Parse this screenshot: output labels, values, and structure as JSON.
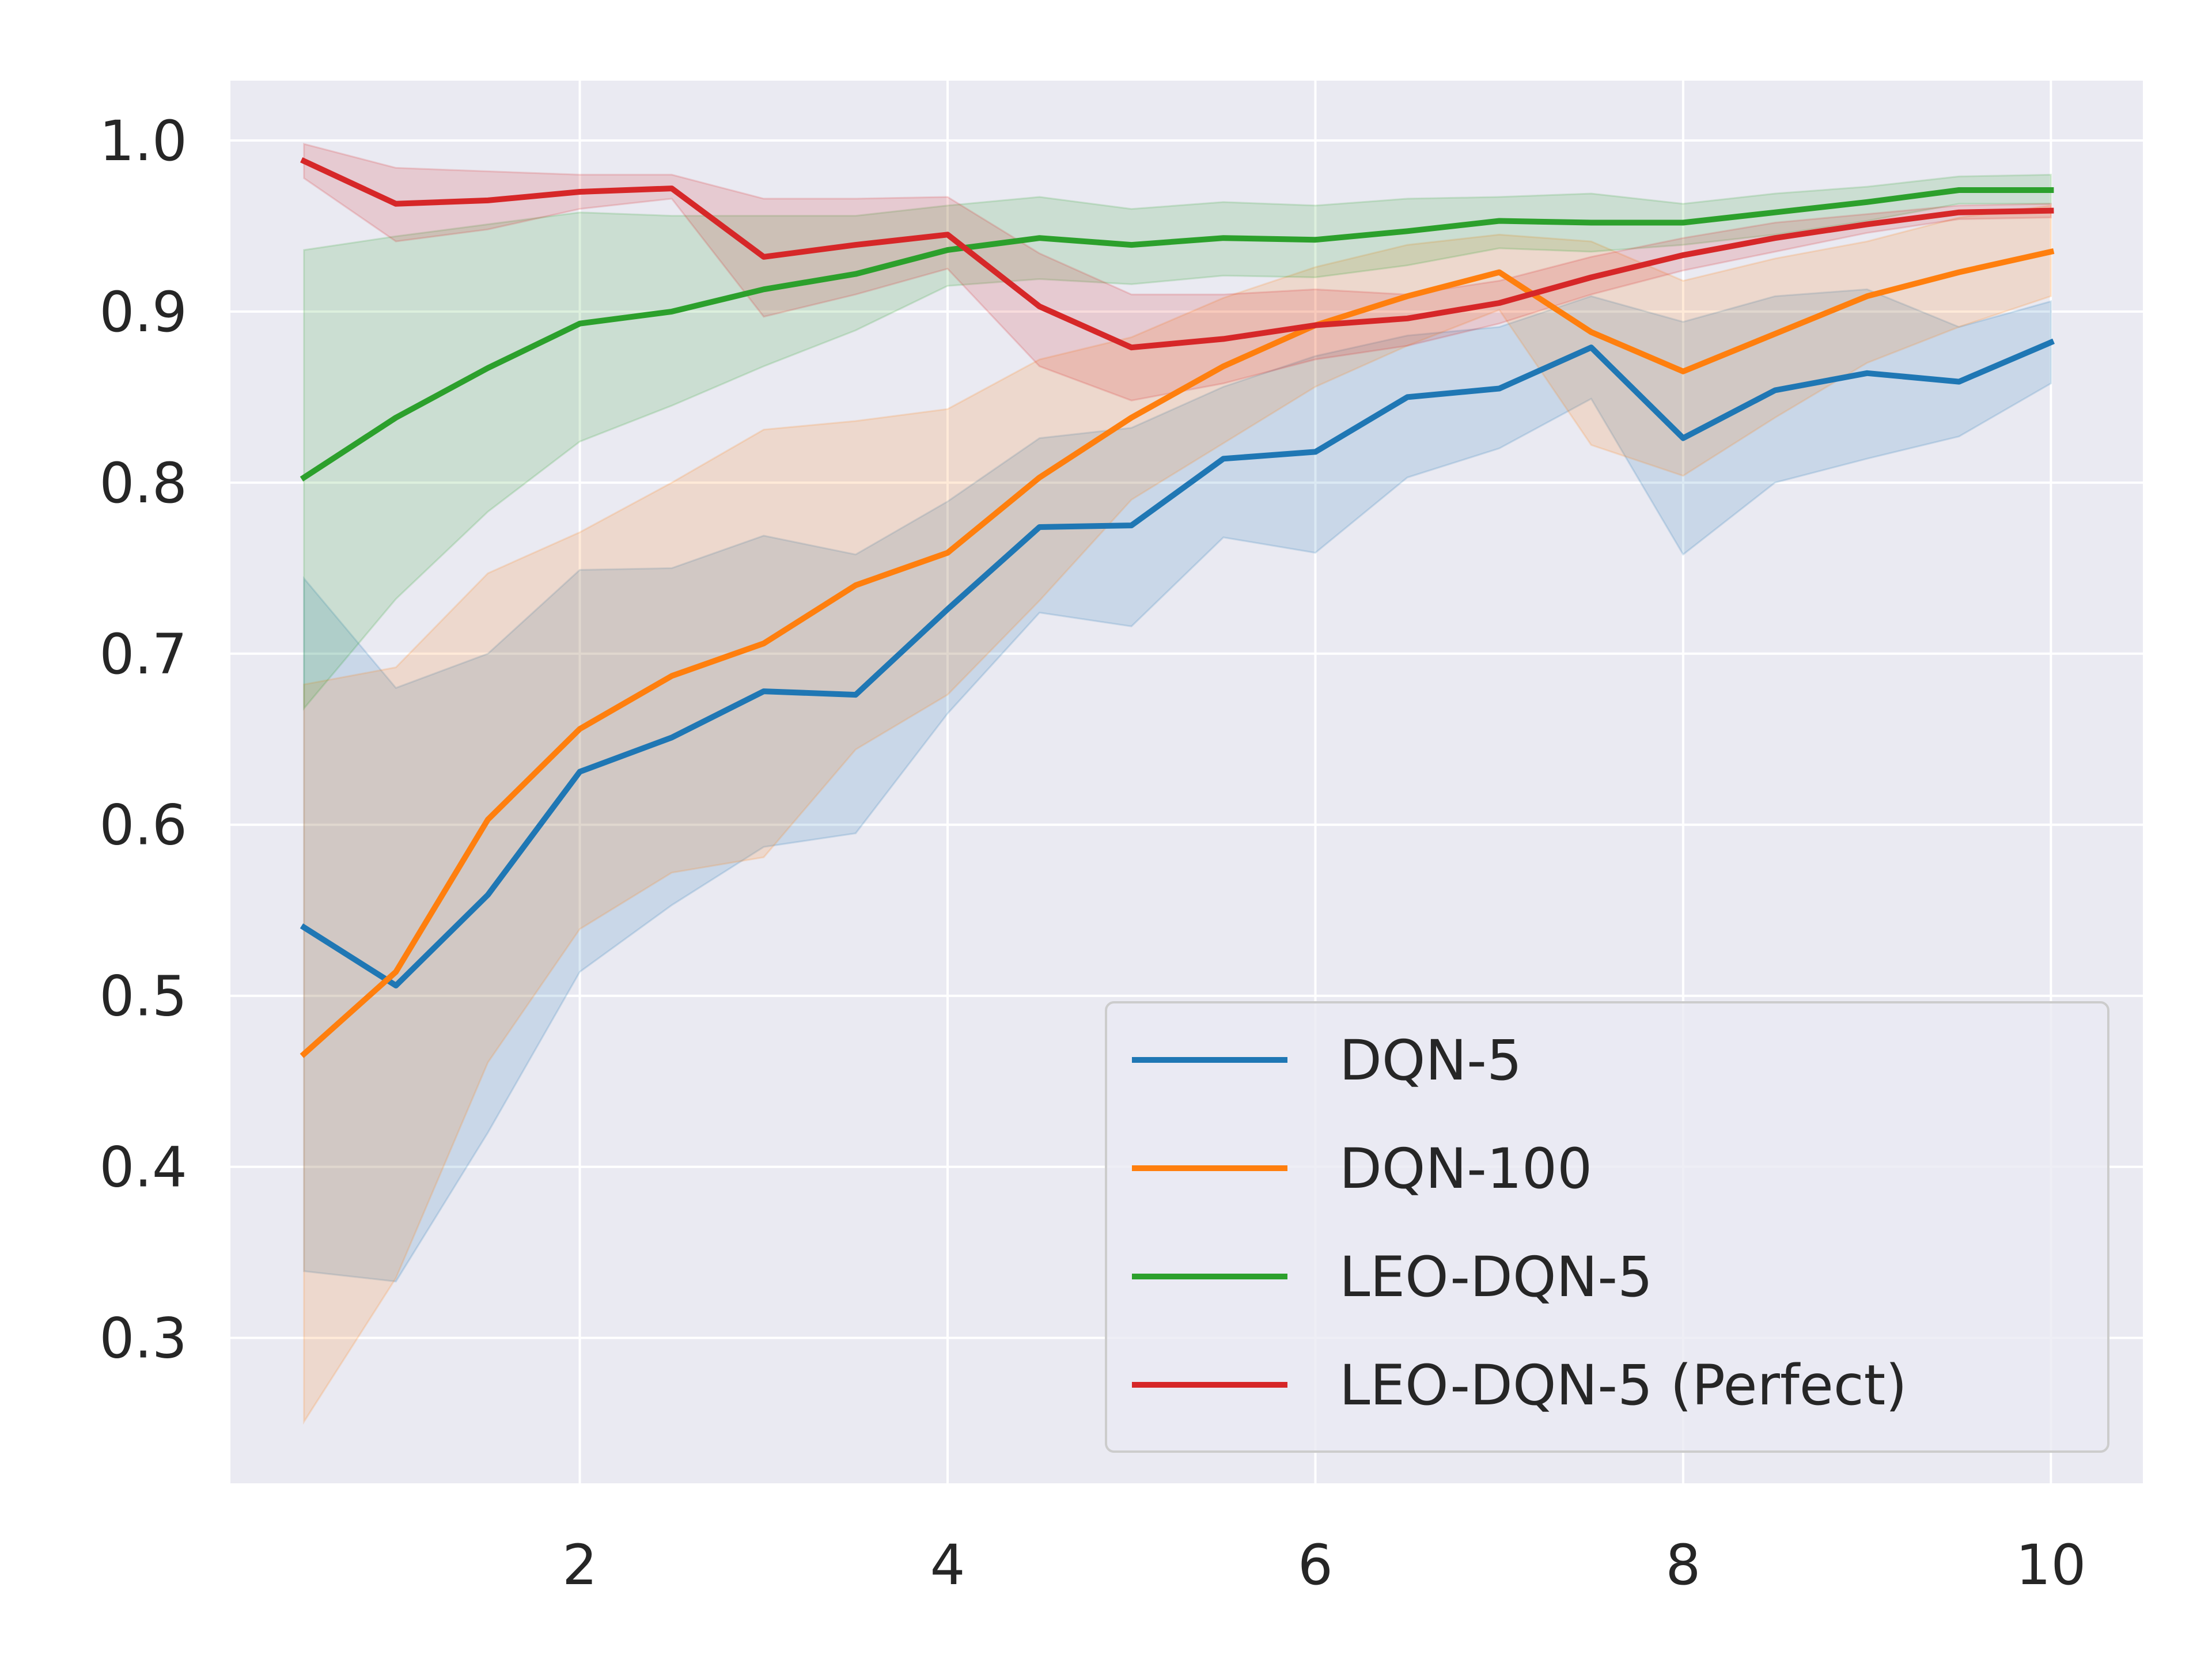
{
  "chart_data": {
    "type": "line",
    "title": "",
    "xlabel": "",
    "ylabel": "",
    "xlim": [
      0.1,
      10.5
    ],
    "ylim": [
      0.215,
      1.035
    ],
    "xticks": [
      2,
      4,
      6,
      8,
      10
    ],
    "yticks": [
      0.3,
      0.4,
      0.5,
      0.6,
      0.7,
      0.8,
      0.9,
      1.0
    ],
    "xtick_labels": [
      "2",
      "4",
      "6",
      "8",
      "10"
    ],
    "ytick_labels": [
      "0.3",
      "0.4",
      "0.5",
      "0.6",
      "0.7",
      "0.8",
      "0.9",
      "1.0"
    ],
    "grid": true,
    "legend_position": "lower-right",
    "background": "#eaeaf2",
    "x": [
      0.5,
      1.0,
      1.5,
      2.0,
      2.5,
      3.0,
      3.5,
      4.0,
      4.5,
      5.0,
      5.5,
      6.0,
      6.5,
      7.0,
      7.5,
      8.0,
      8.5,
      9.0,
      9.5,
      10.0
    ],
    "series": [
      {
        "name": "DQN-5",
        "color": "#1f77b4",
        "values": [
          0.54,
          0.506,
          0.559,
          0.631,
          0.651,
          0.678,
          0.676,
          0.726,
          0.774,
          0.775,
          0.814,
          0.818,
          0.85,
          0.855,
          0.879,
          0.826,
          0.854,
          0.864,
          0.859,
          0.882
        ],
        "lower": [
          0.339,
          0.333,
          0.42,
          0.514,
          0.553,
          0.587,
          0.595,
          0.665,
          0.724,
          0.716,
          0.768,
          0.759,
          0.803,
          0.82,
          0.849,
          0.758,
          0.8,
          0.814,
          0.827,
          0.858
        ],
        "upper": [
          0.744,
          0.68,
          0.7,
          0.749,
          0.75,
          0.769,
          0.758,
          0.789,
          0.826,
          0.832,
          0.856,
          0.874,
          0.886,
          0.891,
          0.909,
          0.894,
          0.909,
          0.913,
          0.891,
          0.906
        ]
      },
      {
        "name": "DQN-100",
        "color": "#ff7f0e",
        "values": [
          0.466,
          0.514,
          0.603,
          0.656,
          0.687,
          0.706,
          0.74,
          0.759,
          0.803,
          0.838,
          0.868,
          0.892,
          0.909,
          0.923,
          0.888,
          0.865,
          0.887,
          0.909,
          0.923,
          0.935
        ],
        "lower": [
          0.251,
          0.335,
          0.461,
          0.539,
          0.572,
          0.581,
          0.644,
          0.676,
          0.731,
          0.79,
          0.823,
          0.856,
          0.88,
          0.901,
          0.822,
          0.804,
          0.838,
          0.87,
          0.891,
          0.909
        ],
        "upper": [
          0.682,
          0.692,
          0.747,
          0.771,
          0.8,
          0.831,
          0.836,
          0.843,
          0.872,
          0.885,
          0.908,
          0.926,
          0.939,
          0.945,
          0.941,
          0.918,
          0.931,
          0.941,
          0.955,
          0.962
        ]
      },
      {
        "name": "LEO-DQN-5",
        "color": "#2ca02c",
        "values": [
          0.803,
          0.838,
          0.867,
          0.893,
          0.9,
          0.913,
          0.922,
          0.936,
          0.943,
          0.939,
          0.943,
          0.942,
          0.947,
          0.953,
          0.952,
          0.952,
          0.958,
          0.964,
          0.971,
          0.971
        ],
        "lower": [
          0.668,
          0.732,
          0.783,
          0.824,
          0.845,
          0.868,
          0.889,
          0.915,
          0.919,
          0.916,
          0.921,
          0.92,
          0.927,
          0.937,
          0.935,
          0.939,
          0.945,
          0.953,
          0.963,
          0.963
        ],
        "upper": [
          0.936,
          0.944,
          0.951,
          0.958,
          0.956,
          0.956,
          0.956,
          0.962,
          0.967,
          0.96,
          0.964,
          0.962,
          0.966,
          0.967,
          0.969,
          0.963,
          0.969,
          0.973,
          0.979,
          0.98
        ]
      },
      {
        "name": "LEO-DQN-5 (Perfect)",
        "color": "#d62728",
        "values": [
          0.988,
          0.963,
          0.965,
          0.97,
          0.972,
          0.932,
          0.939,
          0.945,
          0.903,
          0.879,
          0.884,
          0.892,
          0.896,
          0.905,
          0.92,
          0.933,
          0.943,
          0.951,
          0.958,
          0.959
        ],
        "lower": [
          0.978,
          0.941,
          0.948,
          0.96,
          0.966,
          0.897,
          0.91,
          0.925,
          0.868,
          0.848,
          0.858,
          0.872,
          0.88,
          0.893,
          0.91,
          0.924,
          0.935,
          0.946,
          0.954,
          0.955
        ],
        "upper": [
          0.998,
          0.984,
          0.982,
          0.98,
          0.98,
          0.966,
          0.966,
          0.967,
          0.934,
          0.91,
          0.91,
          0.913,
          0.91,
          0.918,
          0.932,
          0.943,
          0.952,
          0.957,
          0.962,
          0.963
        ]
      }
    ]
  }
}
